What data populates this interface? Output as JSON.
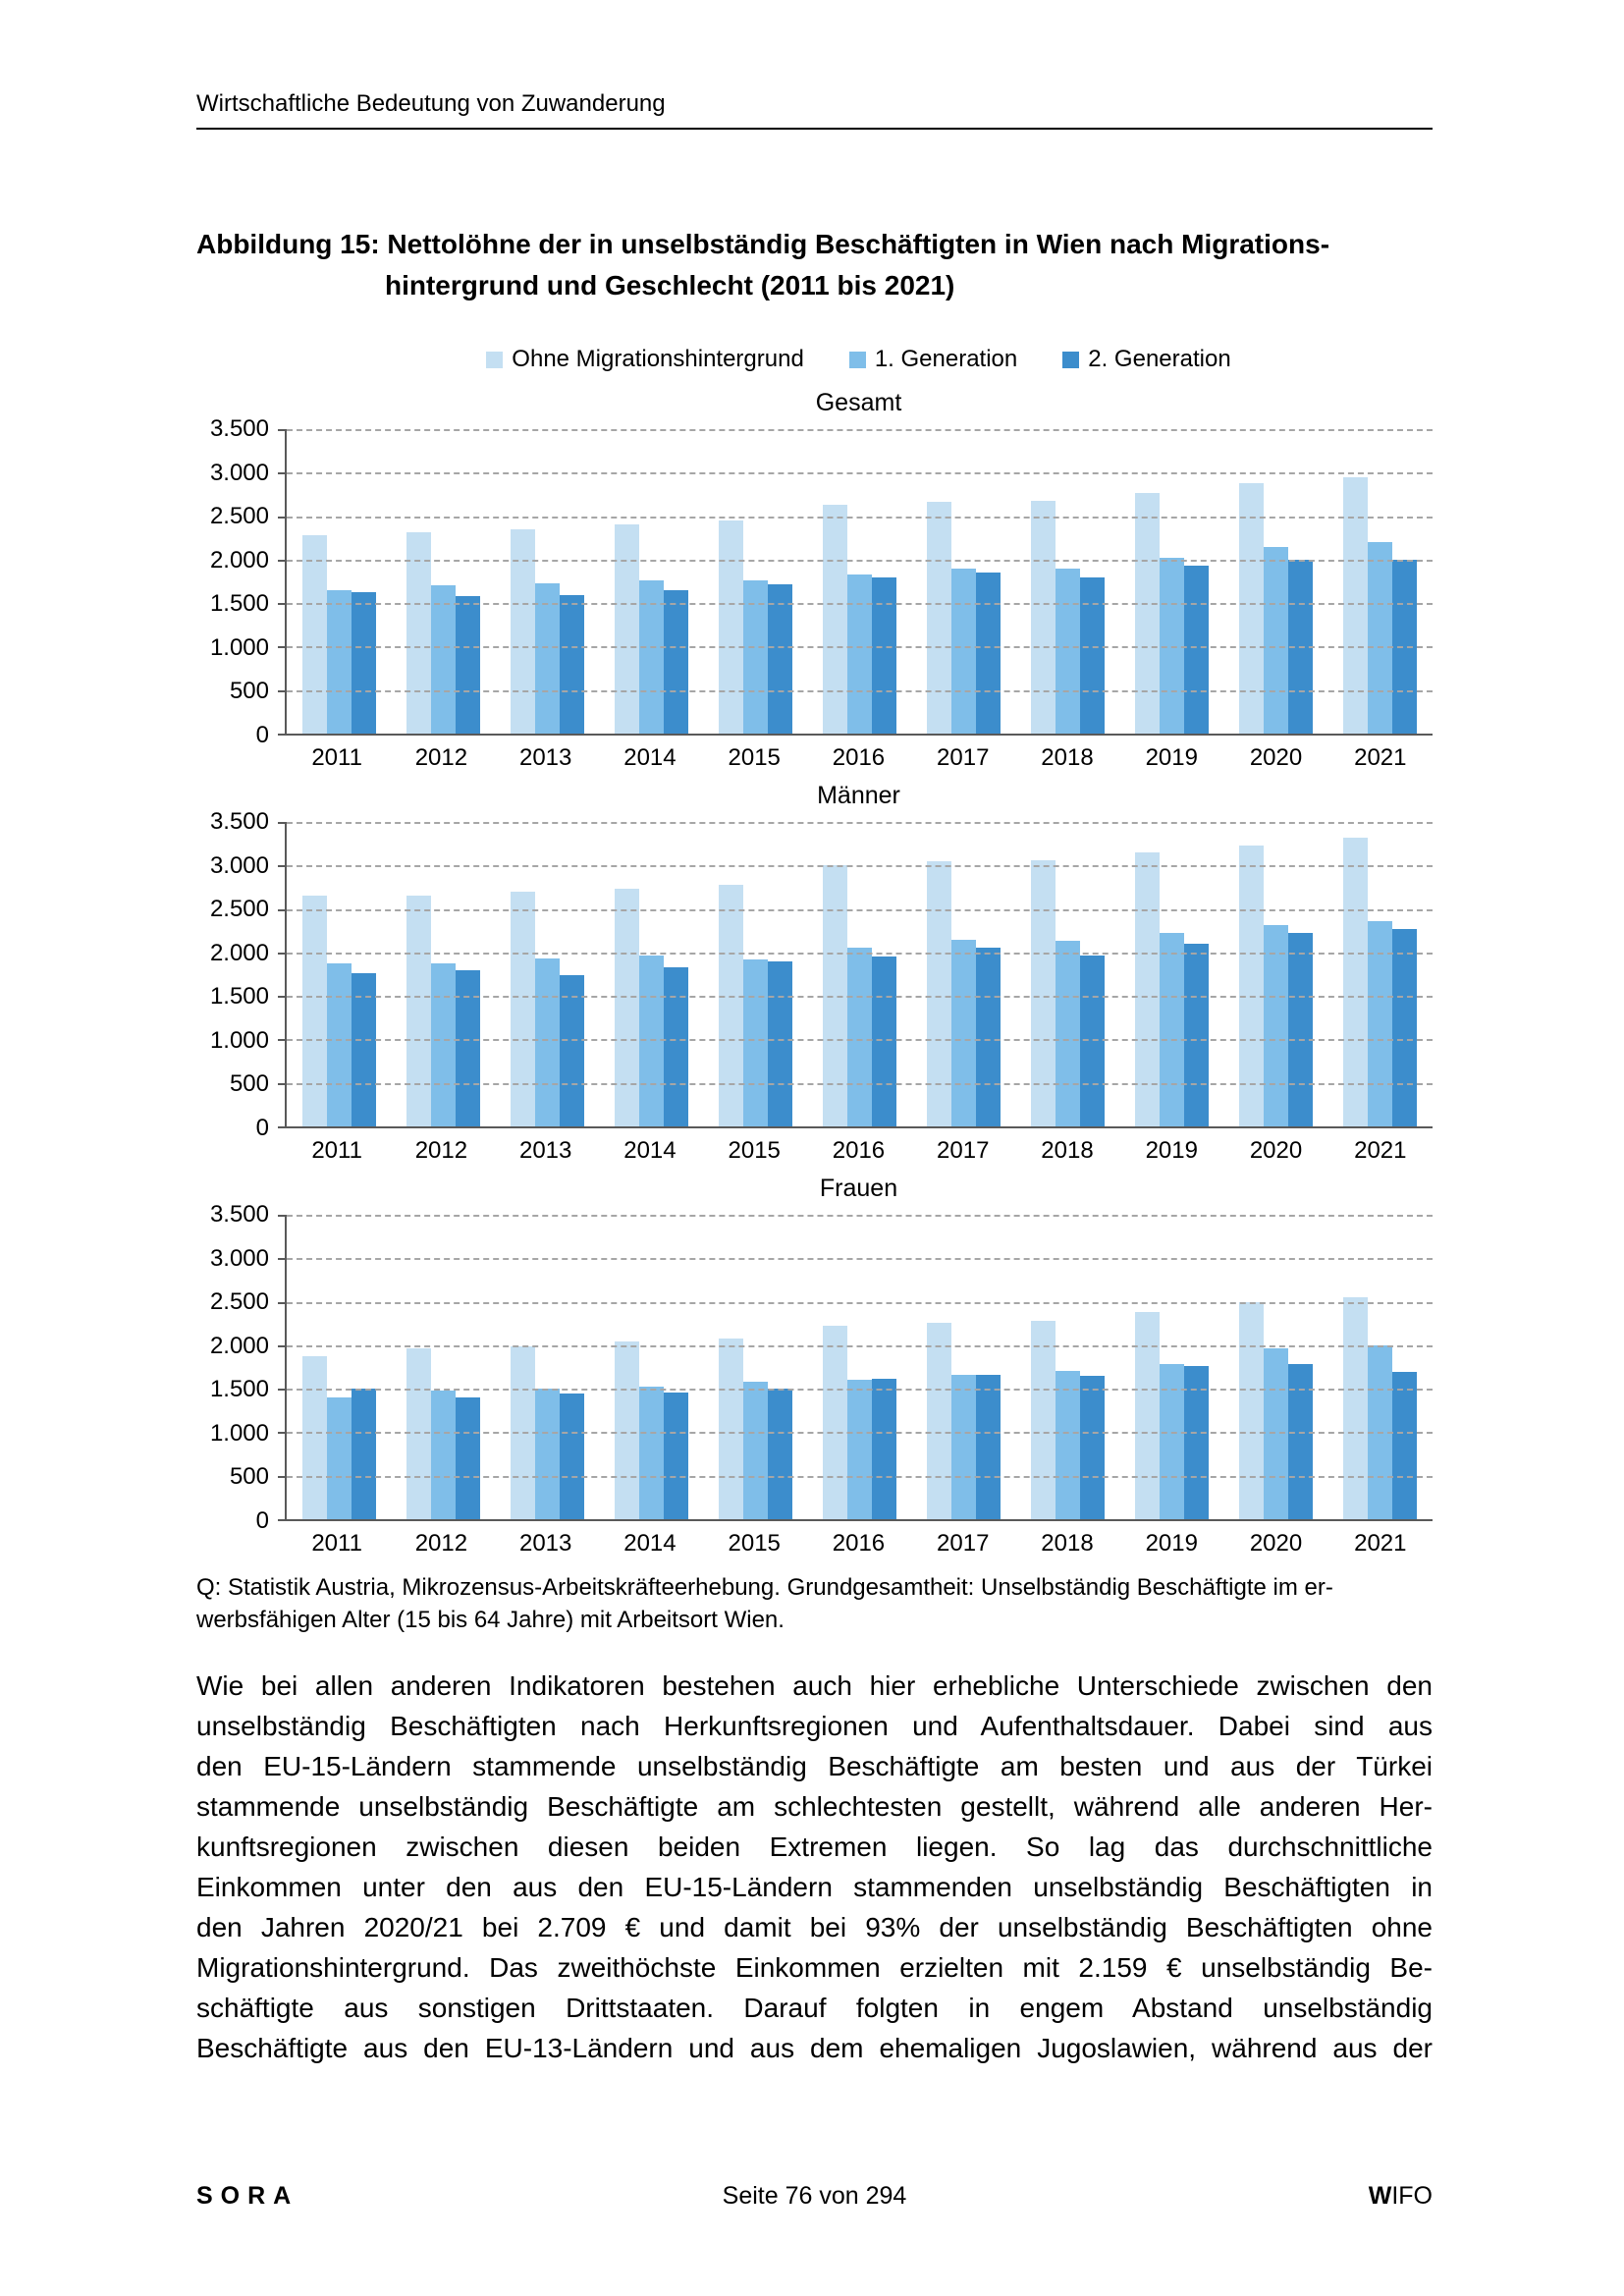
{
  "header": {
    "title": "Wirtschaftliche Bedeutung von Zuwanderung"
  },
  "figure": {
    "title_line1": "Abbildung 15: Nettolöhne der in unselbständig Beschäftigten in Wien nach Migrations-",
    "title_line2": "hintergrund und Geschlecht (2011 bis 2021)"
  },
  "legend": [
    {
      "label": "Ohne Migrationshintergrund",
      "color": "#C4DFF2"
    },
    {
      "label": "1. Generation",
      "color": "#7FBEE9"
    },
    {
      "label": "2. Generation",
      "color": "#3C8DCC"
    }
  ],
  "chart_config": {
    "y_max": 3500,
    "grid": "dashed",
    "legend_position": "top",
    "y_ticks": [
      {
        "value": 3500,
        "label": "3.500"
      },
      {
        "value": 3000,
        "label": "3.000"
      },
      {
        "value": 2500,
        "label": "2.500"
      },
      {
        "value": 2000,
        "label": "2.000"
      },
      {
        "value": 1500,
        "label": "1.500"
      },
      {
        "value": 1000,
        "label": "1.000"
      },
      {
        "value": 500,
        "label": "500"
      },
      {
        "value": 0,
        "label": "0"
      }
    ]
  },
  "chart_data": [
    {
      "type": "bar",
      "title": "Gesamt",
      "xlabel": "",
      "ylabel": "",
      "ylim": [
        0,
        3500
      ],
      "categories": [
        "2011",
        "2012",
        "2013",
        "2014",
        "2015",
        "2016",
        "2017",
        "2018",
        "2019",
        "2020",
        "2021"
      ],
      "series": [
        {
          "name": "Ohne Migrationshintergrund",
          "color": "#C4DFF2",
          "values": [
            2280,
            2320,
            2350,
            2400,
            2450,
            2630,
            2660,
            2680,
            2770,
            2880,
            2950
          ]
        },
        {
          "name": "1. Generation",
          "color": "#7FBEE9",
          "values": [
            1650,
            1700,
            1730,
            1760,
            1760,
            1830,
            1900,
            1900,
            2020,
            2150,
            2200
          ]
        },
        {
          "name": "2. Generation",
          "color": "#3C8DCC",
          "values": [
            1630,
            1580,
            1590,
            1650,
            1720,
            1790,
            1850,
            1790,
            1930,
            2000,
            2000
          ]
        }
      ]
    },
    {
      "type": "bar",
      "title": "Männer",
      "xlabel": "",
      "ylabel": "",
      "ylim": [
        0,
        3500
      ],
      "categories": [
        "2011",
        "2012",
        "2013",
        "2014",
        "2015",
        "2016",
        "2017",
        "2018",
        "2019",
        "2020",
        "2021"
      ],
      "series": [
        {
          "name": "Ohne Migrationshintergrund",
          "color": "#C4DFF2",
          "values": [
            2650,
            2650,
            2700,
            2730,
            2780,
            3000,
            3050,
            3060,
            3150,
            3230,
            3320
          ]
        },
        {
          "name": "1. Generation",
          "color": "#7FBEE9",
          "values": [
            1880,
            1880,
            1930,
            1970,
            1920,
            2050,
            2150,
            2130,
            2220,
            2310,
            2360
          ]
        },
        {
          "name": "2. Generation",
          "color": "#3C8DCC",
          "values": [
            1760,
            1800,
            1740,
            1830,
            1900,
            1950,
            2050,
            1960,
            2100,
            2230,
            2270
          ]
        }
      ]
    },
    {
      "type": "bar",
      "title": "Frauen",
      "xlabel": "",
      "ylabel": "",
      "ylim": [
        0,
        3500
      ],
      "categories": [
        "2011",
        "2012",
        "2013",
        "2014",
        "2015",
        "2016",
        "2017",
        "2018",
        "2019",
        "2020",
        "2021"
      ],
      "series": [
        {
          "name": "Ohne Migrationshintergrund",
          "color": "#C4DFF2",
          "values": [
            1880,
            1960,
            1990,
            2040,
            2080,
            2230,
            2260,
            2280,
            2380,
            2500,
            2550
          ]
        },
        {
          "name": "1. Generation",
          "color": "#7FBEE9",
          "values": [
            1400,
            1480,
            1500,
            1530,
            1580,
            1600,
            1660,
            1710,
            1780,
            1970,
            2000
          ]
        },
        {
          "name": "2. Generation",
          "color": "#3C8DCC",
          "values": [
            1500,
            1400,
            1440,
            1460,
            1500,
            1620,
            1660,
            1650,
            1760,
            1780,
            1690
          ]
        }
      ]
    }
  ],
  "source_note": {
    "lines": [
      "Q: Statistik Austria, Mikrozensus-Arbeitskräfteerhebung. Grundgesamtheit: Unselbständig Beschäftigte im er-",
      "werbsfähigen Alter (15 bis 64 Jahre) mit Arbeitsort Wien."
    ]
  },
  "body": {
    "lines": [
      "Wie bei allen anderen Indikatoren bestehen auch hier erhebliche Unterschiede zwischen den",
      "unselbständig Beschäftigten nach Herkunftsregionen und Aufenthaltsdauer. Dabei sind aus",
      "den EU-15-Ländern stammende unselbständig Beschäftigte am besten und aus der Türkei",
      "stammende unselbständig Beschäftigte am schlechtesten gestellt, während alle anderen Her-",
      "kunftsregionen zwischen diesen beiden Extremen liegen. So lag das durchschnittliche",
      "Einkommen unter den aus den EU-15-Ländern stammenden unselbständig Beschäftigten in",
      "den Jahren 2020/21 bei 2.709 € und damit bei 93% der unselbständig Beschäftigten ohne",
      "Migrationshintergrund. Das zweithöchste Einkommen erzielten mit 2.159 € unselbständig Be-",
      "schäftigte aus sonstigen Drittstaaten. Darauf folgten in engem Abstand unselbständig",
      "Beschäftigte aus den EU-13-Ländern und aus dem ehemaligen Jugoslawien, während aus der"
    ]
  },
  "footer": {
    "left": "SORA",
    "center": "Seite 76 von 294",
    "right_bold": "W",
    "right_rest": "IFO"
  }
}
